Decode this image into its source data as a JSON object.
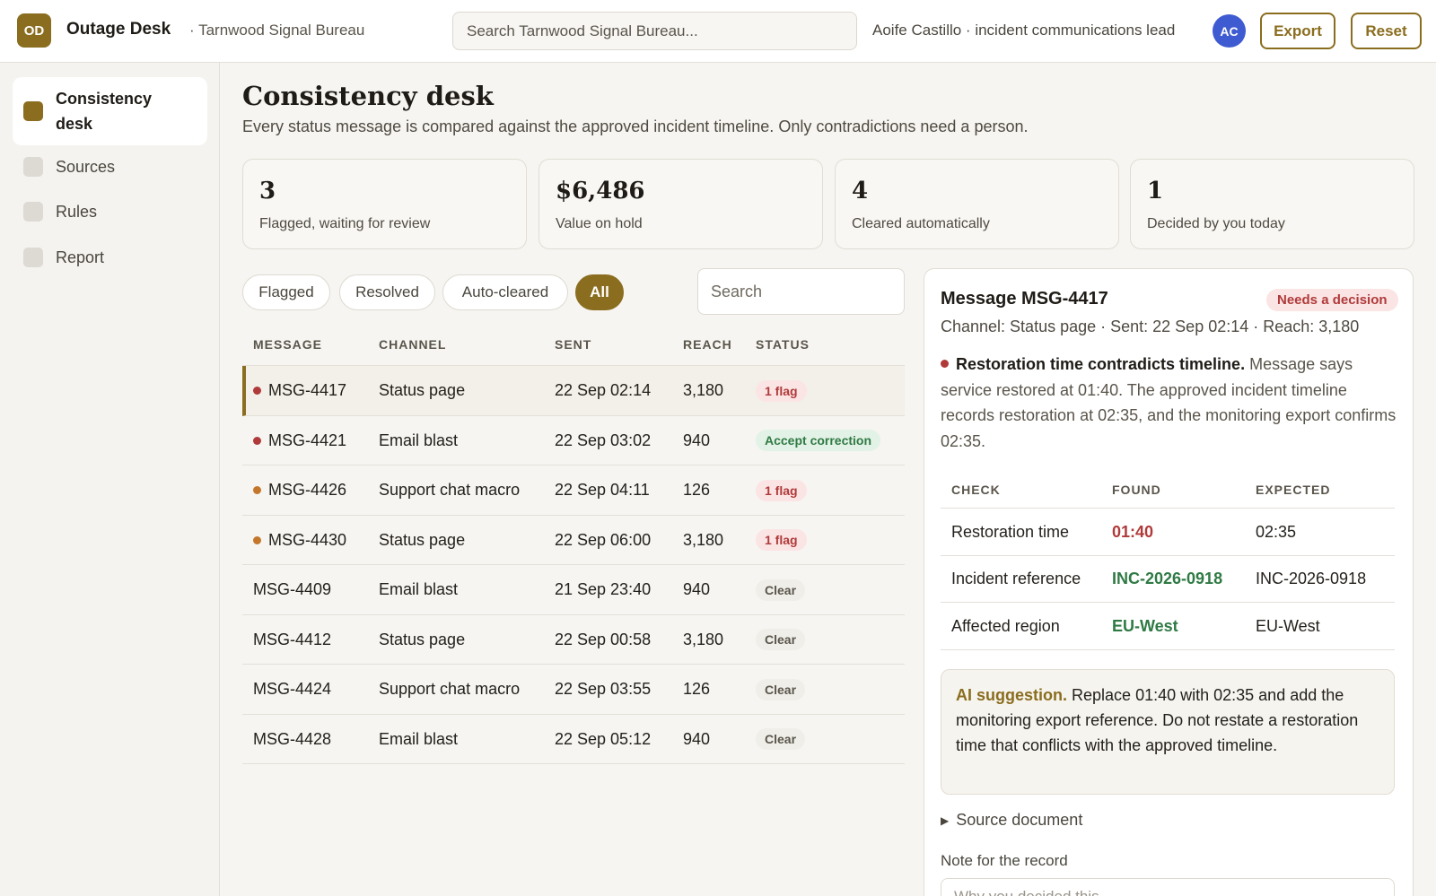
{
  "header": {
    "logo": "OD",
    "app_title": "Outage Desk",
    "org": "· Tarnwood Signal Bureau",
    "search_placeholder": "Search Tarnwood Signal Bureau...",
    "user": "Aoife Castillo · incident communications lead",
    "avatar": "AC",
    "export_label": "Export",
    "reset_label": "Reset"
  },
  "sidebar": {
    "items": [
      {
        "label": "Consistency desk",
        "active": true
      },
      {
        "label": "Sources"
      },
      {
        "label": "Rules"
      },
      {
        "label": "Report"
      }
    ]
  },
  "main": {
    "title": "Consistency desk",
    "subtitle": "Every status message is compared against the approved incident timeline. Only contradictions need a person.",
    "stats": [
      {
        "value": "3",
        "label": "Flagged, waiting for review"
      },
      {
        "value": "$6,486",
        "label": "Value on hold"
      },
      {
        "value": "4",
        "label": "Cleared automatically"
      },
      {
        "value": "1",
        "label": "Decided by you today"
      }
    ],
    "filters": [
      "Flagged",
      "Resolved",
      "Auto-cleared",
      "All"
    ],
    "active_filter": "All",
    "search_placeholder": "Search",
    "columns": [
      "MESSAGE",
      "CHANNEL",
      "SENT",
      "REACH",
      "STATUS"
    ],
    "rows": [
      {
        "id": "MSG-4417",
        "channel": "Status page",
        "sent": "22 Sep 02:14",
        "reach": "3,180",
        "status": "1 flag",
        "dot": "red"
      },
      {
        "id": "MSG-4421",
        "channel": "Email blast",
        "sent": "22 Sep 03:02",
        "reach": "940",
        "status": "Accept correction",
        "dot": "red"
      },
      {
        "id": "MSG-4426",
        "channel": "Support chat macro",
        "sent": "22 Sep 04:11",
        "reach": "126",
        "status": "1 flag",
        "dot": "orange"
      },
      {
        "id": "MSG-4430",
        "channel": "Status page",
        "sent": "22 Sep 06:00",
        "reach": "3,180",
        "status": "1 flag",
        "dot": "orange"
      },
      {
        "id": "MSG-4409",
        "channel": "Email blast",
        "sent": "21 Sep 23:40",
        "reach": "940",
        "status": "Clear"
      },
      {
        "id": "MSG-4412",
        "channel": "Status page",
        "sent": "22 Sep 00:58",
        "reach": "3,180",
        "status": "Clear"
      },
      {
        "id": "MSG-4424",
        "channel": "Support chat macro",
        "sent": "22 Sep 03:55",
        "reach": "126",
        "status": "Clear"
      },
      {
        "id": "MSG-4428",
        "channel": "Email blast",
        "sent": "22 Sep 05:12",
        "reach": "940",
        "status": "Clear"
      }
    ]
  },
  "detail": {
    "title": "Message MSG-4417",
    "badge": "Needs a decision",
    "meta": "Channel: Status page · Sent: 22 Sep 02:14 · Reach: 3,180",
    "finding_title": "Restoration time contradicts timeline.",
    "finding_body": "Message says service restored at 01:40. The approved incident timeline records restoration at 02:35, and the monitoring export confirms 02:35.",
    "check_columns": [
      "CHECK",
      "FOUND",
      "EXPECTED"
    ],
    "checks": [
      {
        "check": "Restoration time",
        "found": "01:40",
        "expected": "02:35",
        "ok": false
      },
      {
        "check": "Incident reference",
        "found": "INC-2026-0918",
        "expected": "INC-2026-0918",
        "ok": true
      },
      {
        "check": "Affected region",
        "found": "EU-West",
        "expected": "EU-West",
        "ok": true
      }
    ],
    "ai_label": "AI suggestion.",
    "ai_text": "Replace 01:40 with 02:35 and add the monitoring export reference. Do not restate a restoration time that conflicts with the approved timeline.",
    "source_label": "Source document",
    "note_label": "Note for the record",
    "note_placeholder": "Why you decided this"
  },
  "colors": {
    "accent": "#8a6d1f",
    "flag_red": "#b03a3a",
    "ok_green": "#2f7a44",
    "avatar_blue": "#3f5bd1"
  }
}
